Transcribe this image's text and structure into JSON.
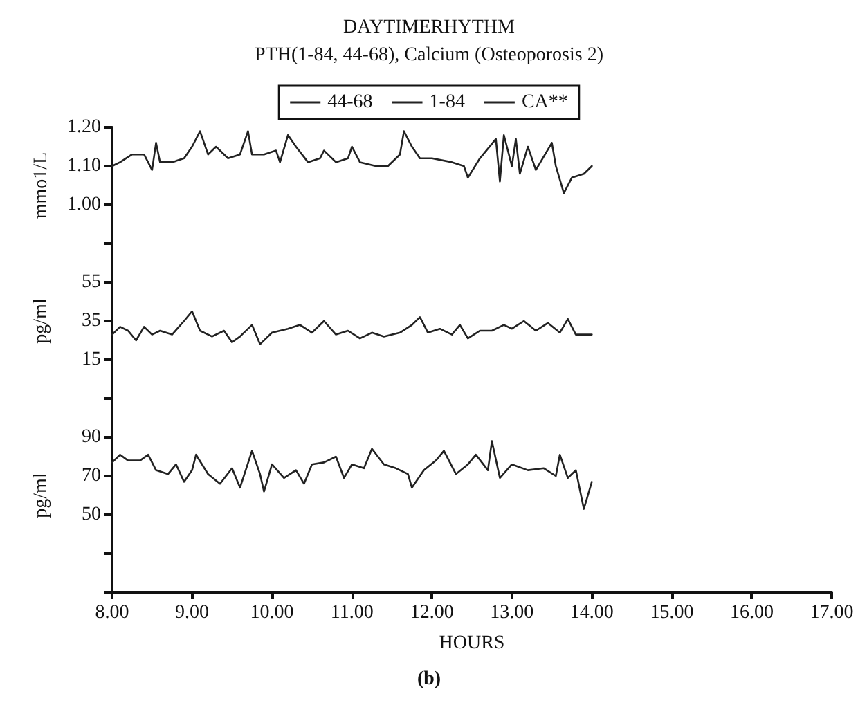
{
  "chart_data": [
    {
      "type": "line",
      "title": "DAYTIMERHYTHM",
      "subtitle": "PTH(1-84, 44-68), Calcium (Osteoporosis 2)",
      "ylabel": "mmo1/L",
      "legend": "top",
      "tick_labels": "y",
      "grid": false,
      "marker": "none",
      "line_style": "solid",
      "xlim": [
        8,
        17
      ],
      "ylim": [
        0.9,
        1.2
      ],
      "yticks": [
        {
          "value": 0.9,
          "label": null
        },
        {
          "value": 1.0,
          "label": "1.00"
        },
        {
          "value": 1.1,
          "label": "1.10"
        },
        {
          "value": 1.2,
          "label": "1.20"
        }
      ],
      "series": [
        {
          "name": "CA**",
          "color": "#222222",
          "x": [
            8.0,
            8.1,
            8.25,
            8.4,
            8.5,
            8.55,
            8.6,
            8.75,
            8.9,
            9.0,
            9.1,
            9.2,
            9.3,
            9.45,
            9.6,
            9.7,
            9.75,
            9.9,
            10.05,
            10.1,
            10.2,
            10.3,
            10.45,
            10.6,
            10.65,
            10.8,
            10.95,
            11.0,
            11.1,
            11.3,
            11.45,
            11.6,
            11.65,
            11.75,
            11.85,
            12.0,
            12.25,
            12.4,
            12.45,
            12.6,
            12.8,
            12.85,
            12.9,
            13.0,
            13.05,
            13.1,
            13.2,
            13.3,
            13.5,
            13.55,
            13.65,
            13.75,
            13.9,
            14.0
          ],
          "values": [
            1.1,
            1.11,
            1.13,
            1.13,
            1.09,
            1.16,
            1.11,
            1.11,
            1.12,
            1.15,
            1.19,
            1.13,
            1.15,
            1.12,
            1.13,
            1.19,
            1.13,
            1.13,
            1.14,
            1.11,
            1.18,
            1.15,
            1.11,
            1.12,
            1.14,
            1.11,
            1.12,
            1.15,
            1.11,
            1.1,
            1.1,
            1.13,
            1.19,
            1.15,
            1.12,
            1.12,
            1.11,
            1.1,
            1.07,
            1.12,
            1.17,
            1.06,
            1.18,
            1.1,
            1.17,
            1.08,
            1.15,
            1.09,
            1.16,
            1.1,
            1.03,
            1.07,
            1.08,
            1.1
          ]
        }
      ]
    },
    {
      "type": "line",
      "ylabel": "pg/ml",
      "tick_labels": "y",
      "grid": false,
      "marker": "none",
      "line_style": "solid",
      "xlim": [
        8,
        17
      ],
      "ylim": [
        -5,
        75
      ],
      "yticks": [
        {
          "value": -5,
          "label": null
        },
        15,
        35,
        55,
        {
          "value": 75,
          "label": null
        }
      ],
      "series": [
        {
          "name": "1-84",
          "color": "#222222",
          "x": [
            8.0,
            8.1,
            8.2,
            8.3,
            8.4,
            8.5,
            8.6,
            8.75,
            8.9,
            9.0,
            9.1,
            9.25,
            9.4,
            9.5,
            9.6,
            9.75,
            9.85,
            10.0,
            10.2,
            10.35,
            10.5,
            10.65,
            10.8,
            10.95,
            11.1,
            11.25,
            11.4,
            11.6,
            11.75,
            11.85,
            11.95,
            12.1,
            12.25,
            12.35,
            12.45,
            12.6,
            12.75,
            12.9,
            13.0,
            13.15,
            13.3,
            13.45,
            13.6,
            13.7,
            13.8,
            14.0
          ],
          "values": [
            28,
            32,
            30,
            25,
            32,
            28,
            30,
            28,
            35,
            40,
            30,
            27,
            30,
            24,
            27,
            33,
            23,
            29,
            31,
            33,
            29,
            35,
            28,
            30,
            26,
            29,
            27,
            29,
            33,
            37,
            29,
            31,
            28,
            33,
            26,
            30,
            30,
            33,
            31,
            35,
            30,
            34,
            29,
            36,
            28,
            28
          ]
        }
      ]
    },
    {
      "type": "line",
      "xlabel": "HOURS",
      "ylabel": "pg/ml",
      "annotations": [
        "(b)"
      ],
      "grid": false,
      "marker": "none",
      "line_style": "solid",
      "xlim": [
        8,
        17
      ],
      "xticks": [
        {
          "value": 8,
          "label": "8.00"
        },
        {
          "value": 9,
          "label": "9.00"
        },
        {
          "value": 10,
          "label": "10.00"
        },
        {
          "value": 11,
          "label": "11.00"
        },
        {
          "value": 12,
          "label": "12.00"
        },
        {
          "value": 13,
          "label": "13.00"
        },
        {
          "value": 14,
          "label": "14.00"
        },
        {
          "value": 15,
          "label": "15.00"
        },
        {
          "value": 16,
          "label": "16.00"
        },
        {
          "value": 17,
          "label": "17.00"
        }
      ],
      "ylim": [
        10,
        110
      ],
      "yticks": [
        {
          "value": 10,
          "label": null
        },
        {
          "value": 30,
          "label": null
        },
        50,
        70,
        90,
        {
          "value": 110,
          "label": null
        }
      ],
      "series": [
        {
          "name": "44-68",
          "color": "#222222",
          "x": [
            8.0,
            8.1,
            8.2,
            8.35,
            8.45,
            8.55,
            8.7,
            8.8,
            8.9,
            9.0,
            9.05,
            9.2,
            9.35,
            9.5,
            9.6,
            9.75,
            9.85,
            9.9,
            10.0,
            10.15,
            10.3,
            10.4,
            10.5,
            10.65,
            10.8,
            10.9,
            11.0,
            11.15,
            11.25,
            11.4,
            11.55,
            11.7,
            11.75,
            11.9,
            12.05,
            12.15,
            12.3,
            12.45,
            12.55,
            12.7,
            12.75,
            12.85,
            13.0,
            13.2,
            13.4,
            13.55,
            13.6,
            13.7,
            13.8,
            13.9,
            14.0
          ],
          "values": [
            77,
            81,
            78,
            78,
            81,
            73,
            71,
            76,
            67,
            73,
            81,
            71,
            66,
            74,
            64,
            83,
            71,
            62,
            76,
            69,
            73,
            66,
            76,
            77,
            80,
            69,
            76,
            74,
            84,
            76,
            74,
            71,
            64,
            73,
            78,
            83,
            71,
            76,
            81,
            73,
            88,
            69,
            76,
            73,
            74,
            70,
            81,
            69,
            73,
            53,
            67
          ]
        }
      ]
    }
  ]
}
